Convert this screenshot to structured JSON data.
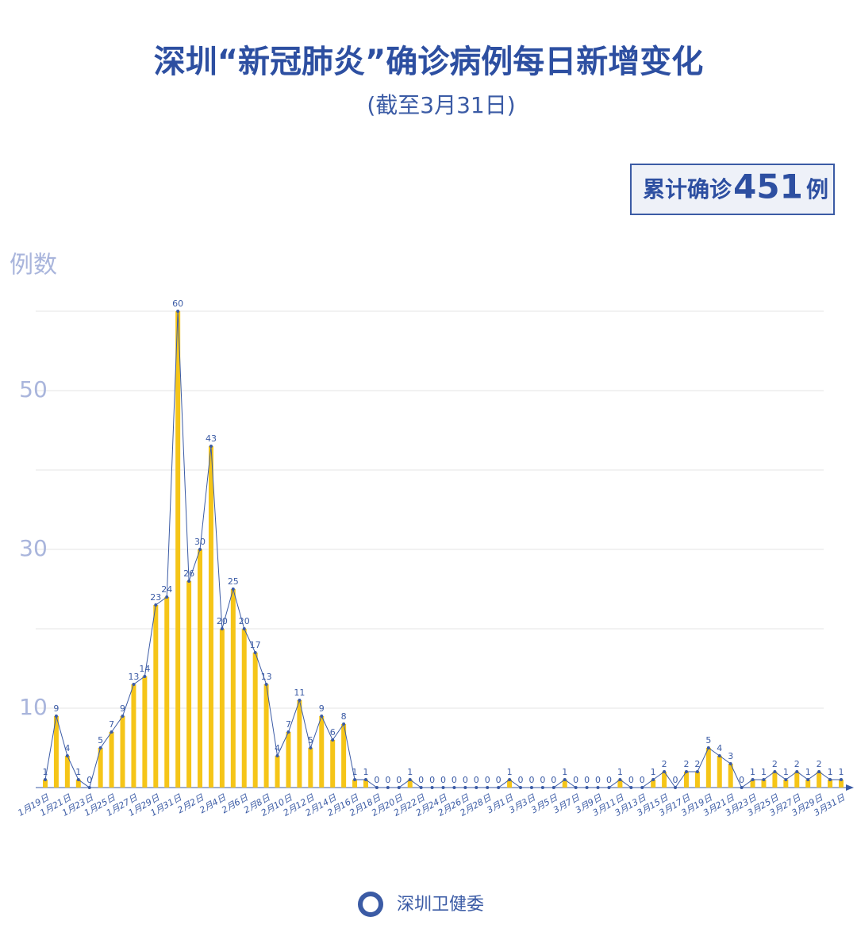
{
  "chart_data": {
    "type": "bar",
    "title": "深圳“新冠肺炎”确诊病例每日新增变化",
    "subtitle": "(截至3月31日)",
    "total_prefix": "累计确诊",
    "total": 451,
    "total_suffix": "例",
    "y_label": "例数",
    "source": "深圳卫健委",
    "bar_color": "#f5c518",
    "line_color": "#3b5ba5",
    "categories": [
      "1月19日",
      null,
      "1月21日",
      null,
      "1月23日",
      null,
      "1月25日",
      null,
      "1月27日",
      null,
      "1月29日",
      null,
      "1月31日",
      null,
      "2月2日",
      null,
      "2月4日",
      null,
      "2月6日",
      null,
      "2月8日",
      null,
      "2月10日",
      null,
      "2月12日",
      null,
      "2月14日",
      null,
      "2月16日",
      null,
      "2月18日",
      null,
      "2月20日",
      null,
      "2月22日",
      null,
      "2月24日",
      null,
      "2月26日",
      null,
      "2月28日",
      null,
      "3月1日",
      null,
      "3月3日",
      null,
      "3月5日",
      null,
      "3月7日",
      null,
      "3月9日",
      null,
      "3月11日",
      null,
      "3月13日",
      null,
      "3月15日",
      null,
      "3月17日",
      null,
      "3月19日",
      null,
      "3月21日",
      null,
      "3月23日",
      null,
      "3月25日",
      null,
      "3月27日",
      null,
      "3月29日",
      null,
      "3月31日"
    ],
    "values": [
      1,
      9,
      4,
      1,
      0,
      5,
      7,
      9,
      13,
      14,
      23,
      24,
      60,
      26,
      30,
      43,
      20,
      25,
      20,
      17,
      13,
      4,
      7,
      11,
      5,
      9,
      6,
      8,
      1,
      1,
      0,
      0,
      0,
      1,
      0,
      0,
      0,
      0,
      0,
      0,
      0,
      0,
      1,
      0,
      0,
      0,
      0,
      1,
      0,
      0,
      0,
      0,
      1,
      0,
      0,
      1,
      2,
      0,
      2,
      2,
      5,
      4,
      3,
      0,
      1,
      1,
      2,
      1,
      2,
      1,
      2,
      1,
      1
    ],
    "ylim": [
      0,
      60
    ],
    "yticks": [
      10,
      30,
      50
    ],
    "ygrid": [
      10,
      20,
      30,
      40,
      50,
      60
    ]
  }
}
